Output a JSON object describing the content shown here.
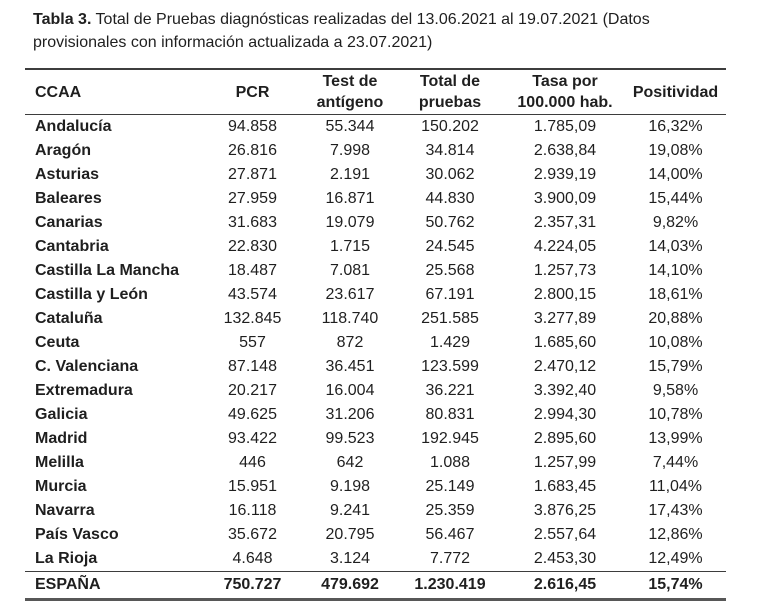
{
  "title": {
    "bold": "Tabla 3.",
    "line1_rest": " Total de Pruebas diagnósticas realizadas del 13.06.2021 al 19.07.2021 (Datos",
    "line2": "provisionales con información actualizada a 23.07.2021)"
  },
  "table": {
    "columns": [
      "CCAA",
      "PCR",
      "Test de antígeno",
      "Total de pruebas",
      "Tasa por 100.000 hab.",
      "Positividad"
    ],
    "rows": [
      [
        "Andalucía",
        "94.858",
        "55.344",
        "150.202",
        "1.785,09",
        "16,32%"
      ],
      [
        "Aragón",
        "26.816",
        "7.998",
        "34.814",
        "2.638,84",
        "19,08%"
      ],
      [
        "Asturias",
        "27.871",
        "2.191",
        "30.062",
        "2.939,19",
        "14,00%"
      ],
      [
        "Baleares",
        "27.959",
        "16.871",
        "44.830",
        "3.900,09",
        "15,44%"
      ],
      [
        "Canarias",
        "31.683",
        "19.079",
        "50.762",
        "2.357,31",
        "9,82%"
      ],
      [
        "Cantabria",
        "22.830",
        "1.715",
        "24.545",
        "4.224,05",
        "14,03%"
      ],
      [
        "Castilla La Mancha",
        "18.487",
        "7.081",
        "25.568",
        "1.257,73",
        "14,10%"
      ],
      [
        "Castilla y León",
        "43.574",
        "23.617",
        "67.191",
        "2.800,15",
        "18,61%"
      ],
      [
        "Cataluña",
        "132.845",
        "118.740",
        "251.585",
        "3.277,89",
        "20,88%"
      ],
      [
        "Ceuta",
        "557",
        "872",
        "1.429",
        "1.685,60",
        "10,08%"
      ],
      [
        "C. Valenciana",
        "87.148",
        "36.451",
        "123.599",
        "2.470,12",
        "15,79%"
      ],
      [
        "Extremadura",
        "20.217",
        "16.004",
        "36.221",
        "3.392,40",
        "9,58%"
      ],
      [
        "Galicia",
        "49.625",
        "31.206",
        "80.831",
        "2.994,30",
        "10,78%"
      ],
      [
        "Madrid",
        "93.422",
        "99.523",
        "192.945",
        "2.895,60",
        "13,99%"
      ],
      [
        "Melilla",
        "446",
        "642",
        "1.088",
        "1.257,99",
        "7,44%"
      ],
      [
        "Murcia",
        "15.951",
        "9.198",
        "25.149",
        "1.683,45",
        "11,04%"
      ],
      [
        "Navarra",
        "16.118",
        "9.241",
        "25.359",
        "3.876,25",
        "17,43%"
      ],
      [
        "País Vasco",
        "35.672",
        "20.795",
        "56.467",
        "2.557,64",
        "12,86%"
      ],
      [
        "La Rioja",
        "4.648",
        "3.124",
        "7.772",
        "2.453,30",
        "12,49%"
      ]
    ],
    "total_row": [
      "ESPAÑA",
      "750.727",
      "479.692",
      "1.230.419",
      "2.616,45",
      "15,74%"
    ]
  },
  "colors": {
    "text": "#1f1f1f",
    "border_top": "#3d3d3d",
    "border_bottom": "#575757",
    "background": "#ffffff"
  }
}
